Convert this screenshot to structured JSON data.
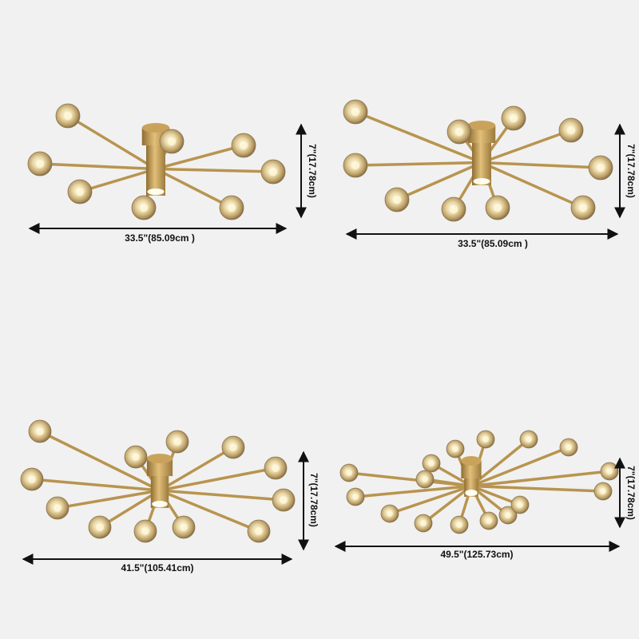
{
  "panels": [
    {
      "width": "33.5\"(85.09cm )",
      "height": "7\"(17.78cm)"
    },
    {
      "width": "33.5\"(85.09cm )",
      "height": "7\"(17.78cm)"
    },
    {
      "width": "41.5\"(105.41cm)",
      "height": "7\"(17.78cm)"
    },
    {
      "width": "49.5\"(125.73cm)",
      "height": "7\"(17.78cm)"
    }
  ]
}
